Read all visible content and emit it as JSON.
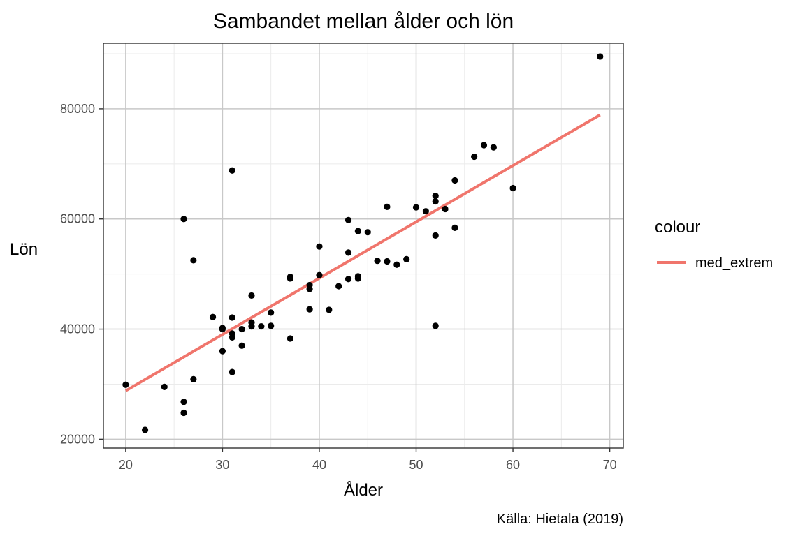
{
  "chart_data": {
    "type": "scatter",
    "title": "Sambandet mellan ålder och lön",
    "xlabel": "Ålder",
    "ylabel": "Lön",
    "caption": "Källa: Hietala (2019)",
    "xlim": [
      17.7,
      71.4
    ],
    "ylim": [
      18400,
      91900
    ],
    "x_ticks": [
      20,
      30,
      40,
      50,
      60,
      70
    ],
    "y_ticks": [
      20000,
      40000,
      60000,
      80000
    ],
    "grid": true,
    "legend": {
      "title": "colour",
      "position": "right",
      "entries": [
        {
          "label": "med_extrem",
          "color": "#f0756c"
        }
      ]
    },
    "points": [
      [
        20,
        29900
      ],
      [
        22,
        21700
      ],
      [
        24,
        29500
      ],
      [
        26,
        26800
      ],
      [
        26,
        24800
      ],
      [
        26,
        60000
      ],
      [
        27,
        52500
      ],
      [
        27,
        30900
      ],
      [
        29,
        42200
      ],
      [
        30,
        40200
      ],
      [
        30,
        40000
      ],
      [
        30,
        36000
      ],
      [
        31,
        42100
      ],
      [
        31,
        39200
      ],
      [
        31,
        38500
      ],
      [
        31,
        32200
      ],
      [
        31,
        68800
      ],
      [
        32,
        40000
      ],
      [
        32,
        37000
      ],
      [
        33,
        46100
      ],
      [
        33,
        41200
      ],
      [
        33,
        40500
      ],
      [
        34,
        40500
      ],
      [
        35,
        43000
      ],
      [
        35,
        40600
      ],
      [
        37,
        49500
      ],
      [
        37,
        49200
      ],
      [
        37,
        38300
      ],
      [
        39,
        48000
      ],
      [
        39,
        47300
      ],
      [
        39,
        43600
      ],
      [
        40,
        55000
      ],
      [
        40,
        49800
      ],
      [
        41,
        43500
      ],
      [
        42,
        47800
      ],
      [
        43,
        59800
      ],
      [
        43,
        53900
      ],
      [
        43,
        49100
      ],
      [
        44,
        57800
      ],
      [
        44,
        49600
      ],
      [
        44,
        49200
      ],
      [
        45,
        57600
      ],
      [
        46,
        52400
      ],
      [
        47,
        62200
      ],
      [
        47,
        52300
      ],
      [
        48,
        51700
      ],
      [
        49,
        52700
      ],
      [
        50,
        62100
      ],
      [
        51,
        61400
      ],
      [
        52,
        64200
      ],
      [
        52,
        63200
      ],
      [
        52,
        57000
      ],
      [
        52,
        40600
      ],
      [
        53,
        61800
      ],
      [
        54,
        67000
      ],
      [
        54,
        58400
      ],
      [
        56,
        71300
      ],
      [
        57,
        73400
      ],
      [
        58,
        73000
      ],
      [
        60,
        65600
      ],
      [
        69,
        89500
      ]
    ],
    "point_color": "#000000",
    "series": [
      {
        "name": "med_extrem",
        "type": "line",
        "color": "#f0756c",
        "x": [
          20,
          69
        ],
        "y": [
          28800,
          78900
        ]
      }
    ]
  }
}
